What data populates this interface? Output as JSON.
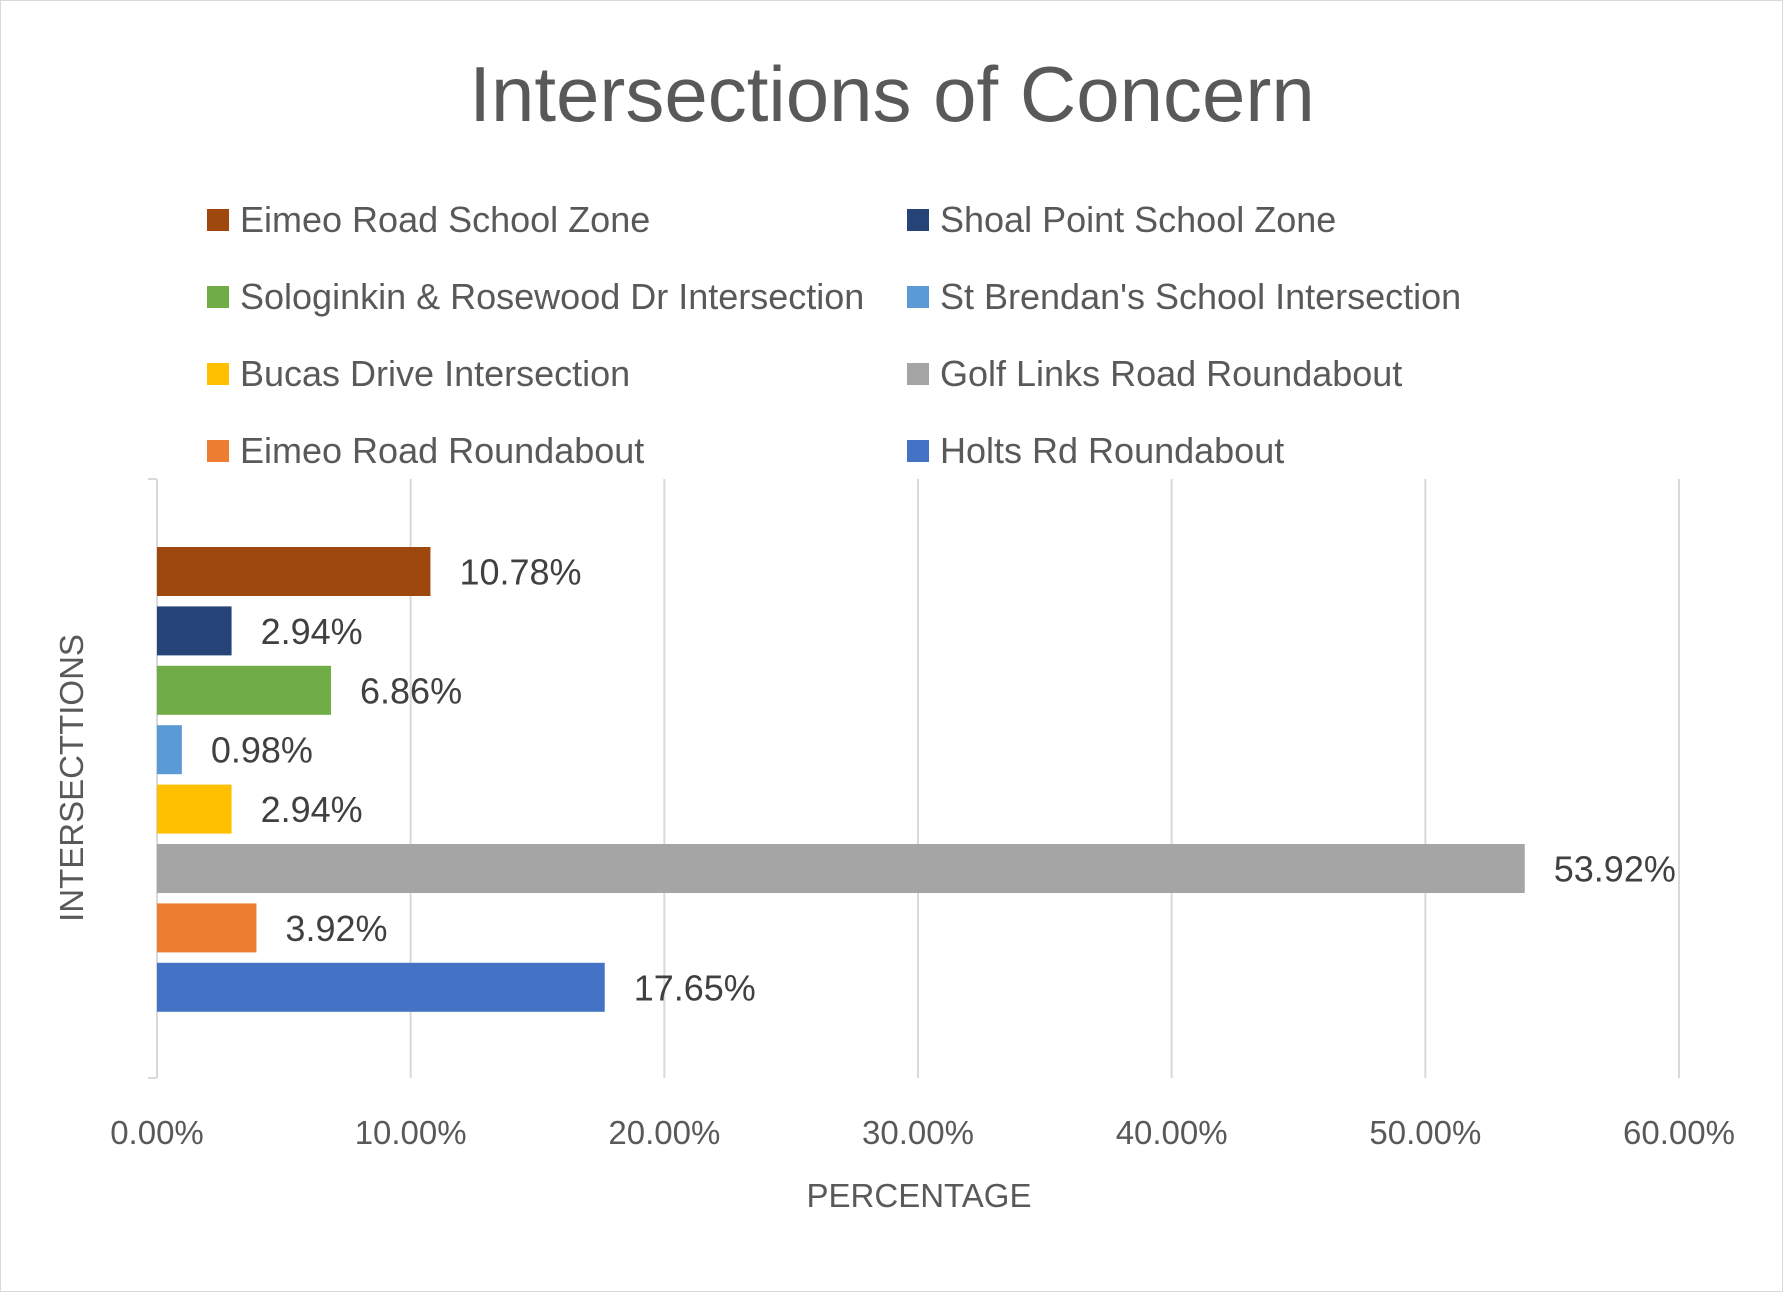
{
  "chart_data": {
    "type": "bar",
    "orientation": "horizontal",
    "title": "Intersections of Concern",
    "xlabel": "PERCENTAGE",
    "ylabel": "INTERSECTTIONS",
    "xlim": [
      0,
      60
    ],
    "xticks": [
      "0.00%",
      "10.00%",
      "20.00%",
      "30.00%",
      "40.00%",
      "50.00%",
      "60.00%"
    ],
    "grid": "vertical",
    "legend_position": "top",
    "series": [
      {
        "name": "Eimeo Road School Zone",
        "value": 10.78,
        "label": "10.78%",
        "color": "#9E480E"
      },
      {
        "name": "Shoal Point School Zone",
        "value": 2.94,
        "label": "2.94%",
        "color": "#264478"
      },
      {
        "name": "Sologinkin & Rosewood Dr Intersection",
        "value": 6.86,
        "label": "6.86%",
        "color": "#70AD47"
      },
      {
        "name": "St Brendan's School Intersection",
        "value": 0.98,
        "label": "0.98%",
        "color": "#5B9BD5"
      },
      {
        "name": "Bucas Drive Intersection",
        "value": 2.94,
        "label": "2.94%",
        "color": "#FFC000"
      },
      {
        "name": "Golf Links Road Roundabout",
        "value": 53.92,
        "label": "53.92%",
        "color": "#A5A5A5"
      },
      {
        "name": "Eimeo Road Roundabout",
        "value": 3.92,
        "label": "3.92%",
        "color": "#ED7D31"
      },
      {
        "name": "Holts Rd Roundabout",
        "value": 17.65,
        "label": "17.65%",
        "color": "#4472C4"
      }
    ]
  }
}
